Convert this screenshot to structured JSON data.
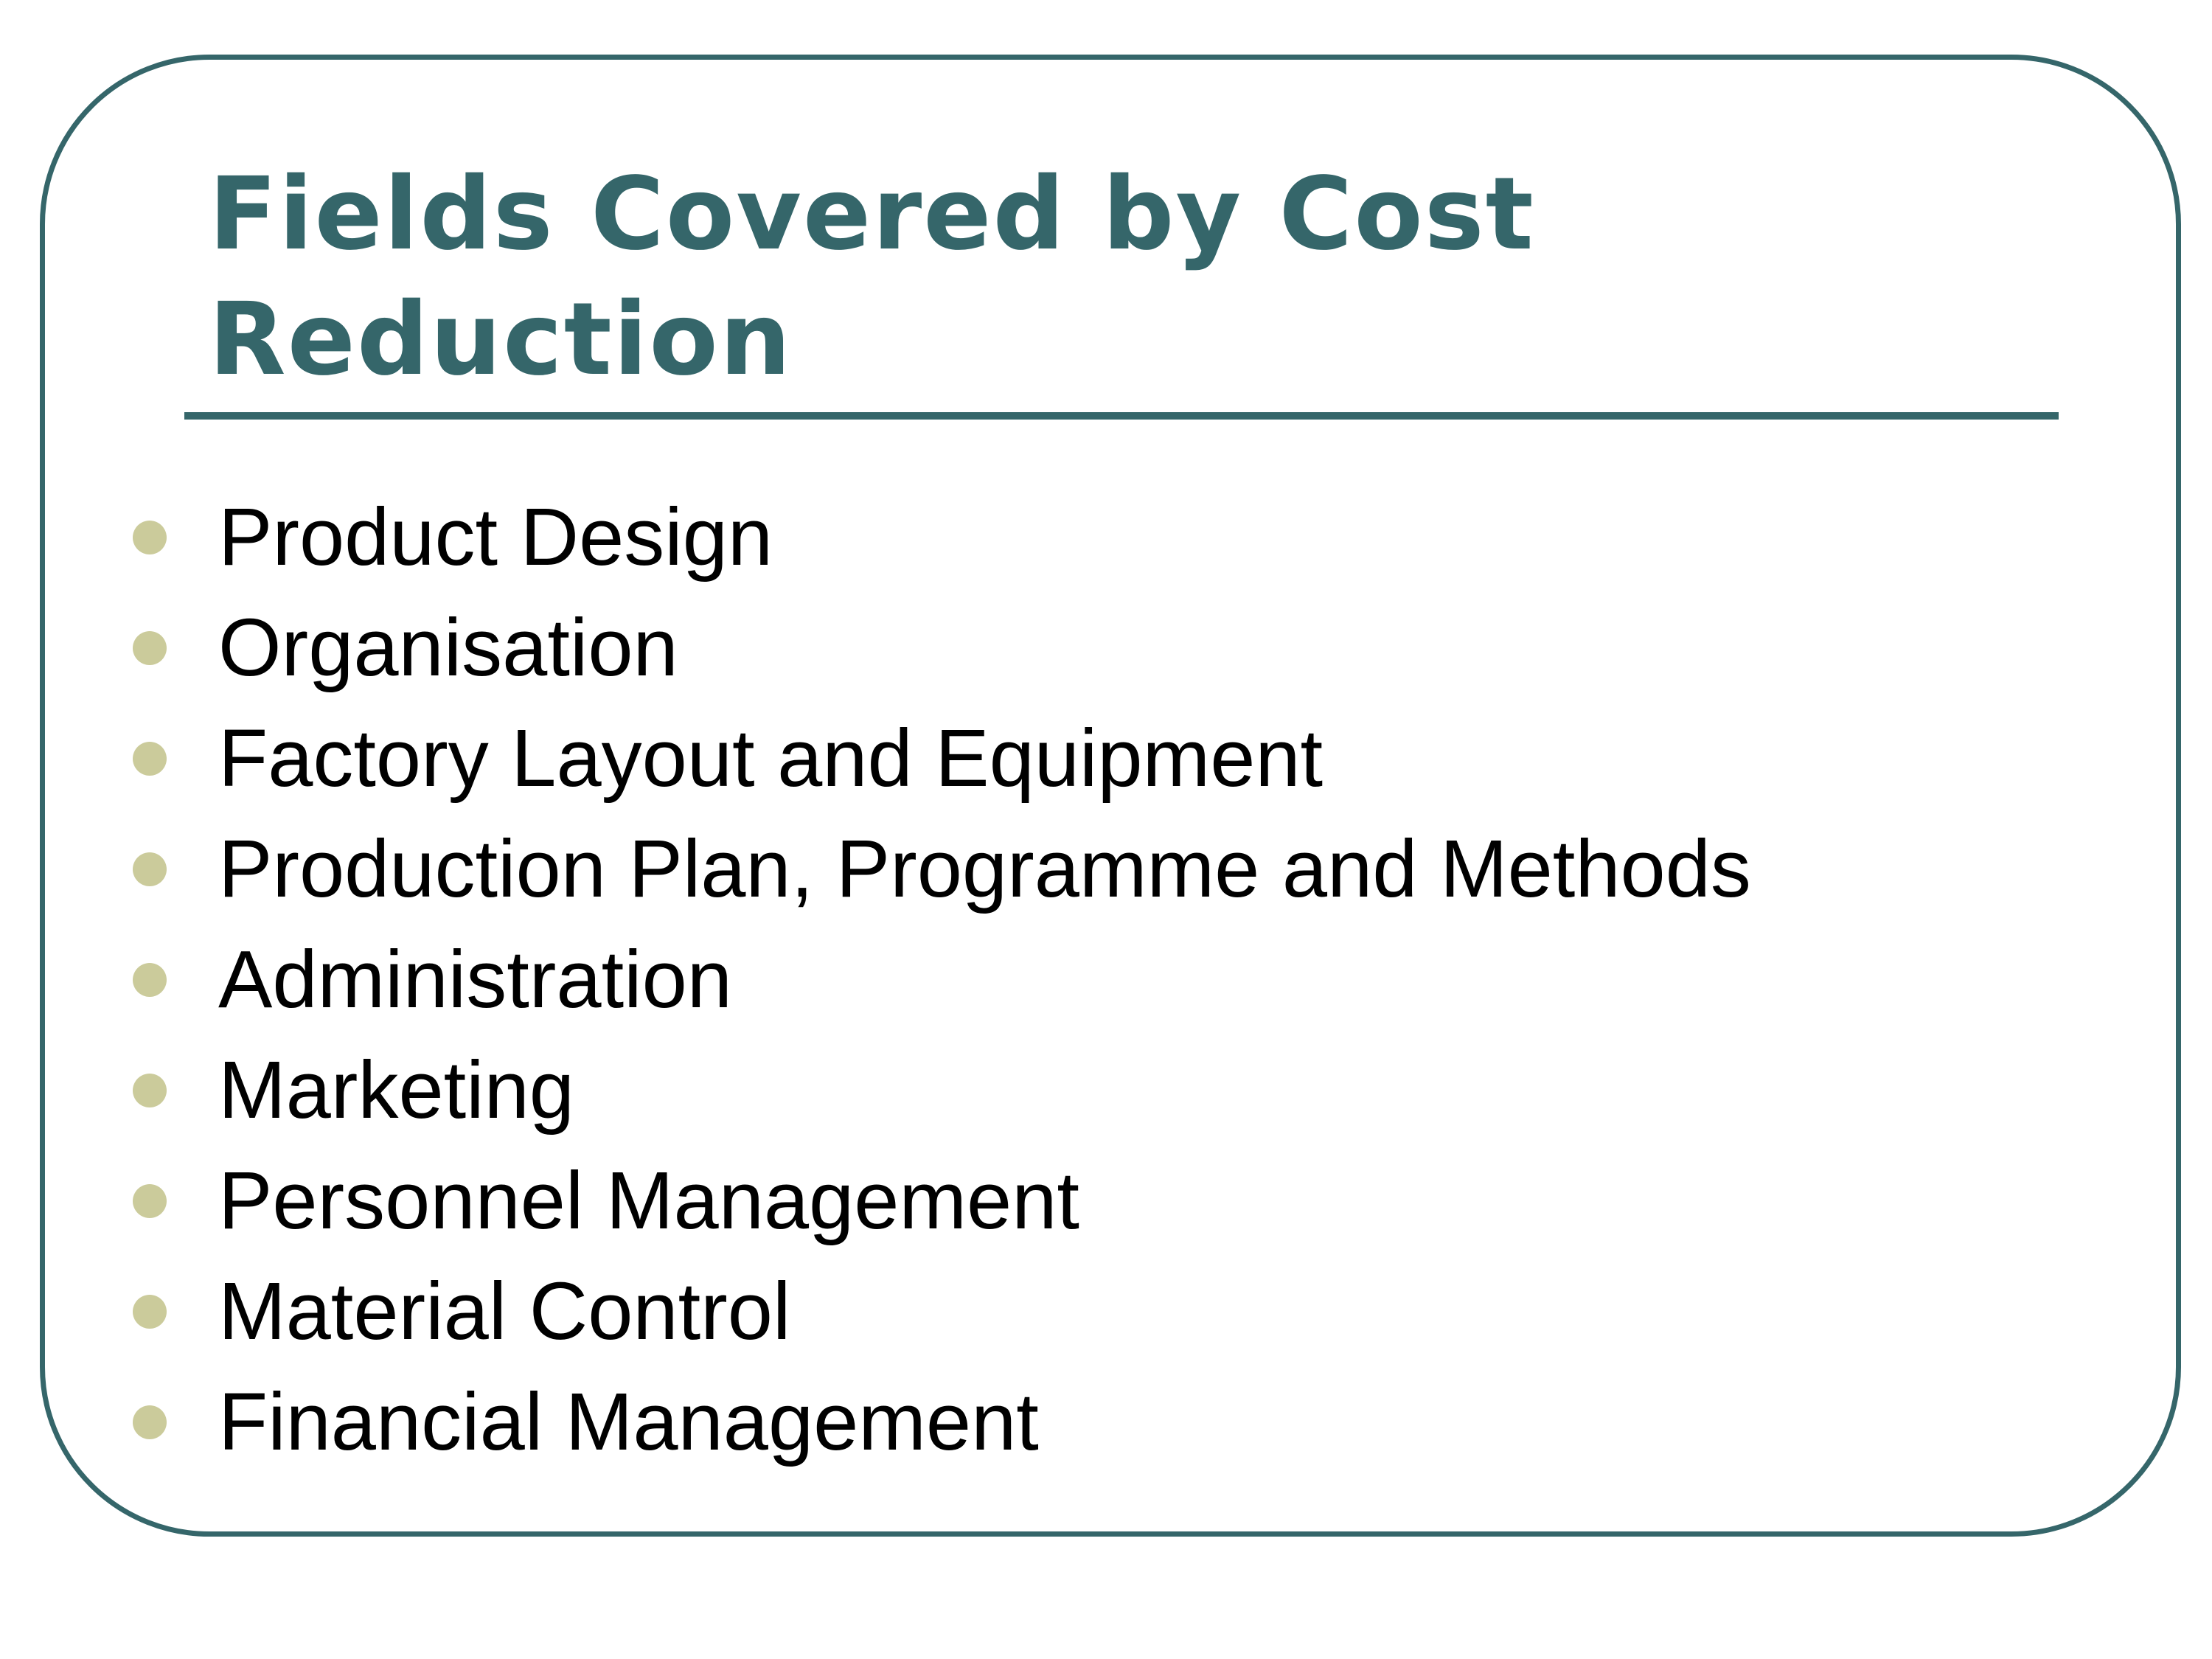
{
  "slide": {
    "title": "Fields Covered by Cost Reduction",
    "bullets": [
      "Product Design",
      "Organisation",
      "Factory Layout and Equipment",
      "Production Plan, Programme and Methods",
      "Administration",
      "Marketing",
      "Personnel Management",
      "Material Control",
      "Financial Management"
    ]
  },
  "colors": {
    "accent": "#35666a",
    "bullet": "#cbcb9b",
    "text": "#000000"
  }
}
